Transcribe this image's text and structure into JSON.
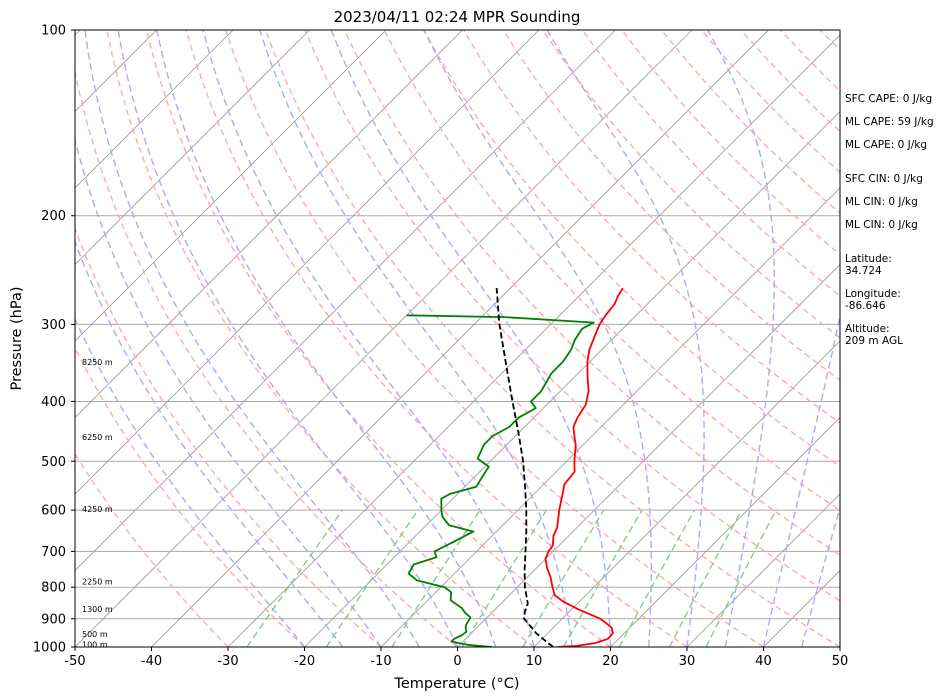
{
  "chart_data": {
    "type": "line",
    "title": "2023/04/11 02:24 MPR Sounding",
    "xlabel": "Temperature (°C)",
    "ylabel": "Pressure (hPa)",
    "xlim": [
      -50,
      50
    ],
    "ylim": [
      1000,
      100
    ],
    "y_scale": "log",
    "grid": true,
    "xticks": [
      "-50",
      "-40",
      "-30",
      "-20",
      "-10",
      "0",
      "10",
      "20",
      "30",
      "40",
      "50"
    ],
    "yticks": [
      "100",
      "200",
      "300",
      "400",
      "500",
      "600",
      "700",
      "800",
      "900",
      "1000"
    ],
    "height_labels": [
      {
        "text": "8250 m",
        "p": 345
      },
      {
        "text": "6250 m",
        "p": 457
      },
      {
        "text": "4250 m",
        "p": 598
      },
      {
        "text": "2250 m",
        "p": 783
      },
      {
        "text": "1300 m",
        "p": 868
      },
      {
        "text": "500 m",
        "p": 952
      },
      {
        "text": "100 m",
        "p": 990
      }
    ],
    "series": [
      {
        "color": "#ff0000",
        "values": [
          {
            "p": 1000,
            "t": 13.0
          },
          {
            "p": 996,
            "t": 15.5
          },
          {
            "p": 985,
            "t": 17.5
          },
          {
            "p": 970,
            "t": 18.6
          },
          {
            "p": 950,
            "t": 18.5
          },
          {
            "p": 930,
            "t": 17.6
          },
          {
            "p": 900,
            "t": 15.0
          },
          {
            "p": 870,
            "t": 11.0
          },
          {
            "p": 845,
            "t": 8.0
          },
          {
            "p": 825,
            "t": 6.0
          },
          {
            "p": 800,
            "t": 4.6
          },
          {
            "p": 770,
            "t": 3.0
          },
          {
            "p": 745,
            "t": 1.4
          },
          {
            "p": 720,
            "t": 0.0
          },
          {
            "p": 700,
            "t": -0.6
          },
          {
            "p": 685,
            "t": -0.8
          },
          {
            "p": 660,
            "t": -2.0
          },
          {
            "p": 640,
            "t": -2.6
          },
          {
            "p": 600,
            "t": -4.6
          },
          {
            "p": 560,
            "t": -6.5
          },
          {
            "p": 545,
            "t": -7.3
          },
          {
            "p": 520,
            "t": -7.6
          },
          {
            "p": 500,
            "t": -9.0
          },
          {
            "p": 470,
            "t": -11.0
          },
          {
            "p": 455,
            "t": -12.3
          },
          {
            "p": 440,
            "t": -13.6
          },
          {
            "p": 425,
            "t": -14.3
          },
          {
            "p": 405,
            "t": -14.9
          },
          {
            "p": 385,
            "t": -16.3
          },
          {
            "p": 365,
            "t": -18.3
          },
          {
            "p": 345,
            "t": -20.3
          },
          {
            "p": 330,
            "t": -21.6
          },
          {
            "p": 315,
            "t": -22.6
          },
          {
            "p": 300,
            "t": -23.6
          },
          {
            "p": 290,
            "t": -24.0
          },
          {
            "p": 278,
            "t": -24.3
          },
          {
            "p": 270,
            "t": -24.9
          },
          {
            "p": 262,
            "t": -25.3
          }
        ]
      },
      {
        "color": "#008000",
        "values": [
          {
            "p": 1000,
            "t": 4.5
          },
          {
            "p": 992,
            "t": 1.0
          },
          {
            "p": 980,
            "t": -1.5
          },
          {
            "p": 970,
            "t": -1.5
          },
          {
            "p": 958,
            "t": -1.0
          },
          {
            "p": 945,
            "t": -0.8
          },
          {
            "p": 930,
            "t": -1.5
          },
          {
            "p": 920,
            "t": -1.8
          },
          {
            "p": 905,
            "t": -2.0
          },
          {
            "p": 895,
            "t": -2.2
          },
          {
            "p": 880,
            "t": -3.5
          },
          {
            "p": 865,
            "t": -4.5
          },
          {
            "p": 840,
            "t": -7.0
          },
          {
            "p": 815,
            "t": -8.0
          },
          {
            "p": 800,
            "t": -9.5
          },
          {
            "p": 780,
            "t": -14.0
          },
          {
            "p": 760,
            "t": -16.0
          },
          {
            "p": 735,
            "t": -16.5
          },
          {
            "p": 715,
            "t": -14.5
          },
          {
            "p": 700,
            "t": -15.5
          },
          {
            "p": 680,
            "t": -14.5
          },
          {
            "p": 650,
            "t": -13.0
          },
          {
            "p": 635,
            "t": -17.0
          },
          {
            "p": 615,
            "t": -19.0
          },
          {
            "p": 600,
            "t": -20.0
          },
          {
            "p": 575,
            "t": -21.5
          },
          {
            "p": 565,
            "t": -21.0
          },
          {
            "p": 550,
            "t": -18.5
          },
          {
            "p": 530,
            "t": -19.0
          },
          {
            "p": 510,
            "t": -19.5
          },
          {
            "p": 495,
            "t": -22.0
          },
          {
            "p": 470,
            "t": -23.0
          },
          {
            "p": 455,
            "t": -23.0
          },
          {
            "p": 440,
            "t": -22.0
          },
          {
            "p": 425,
            "t": -22.0
          },
          {
            "p": 410,
            "t": -21.0
          },
          {
            "p": 400,
            "t": -22.5
          },
          {
            "p": 385,
            "t": -22.5
          },
          {
            "p": 372,
            "t": -23.0
          },
          {
            "p": 360,
            "t": -23.5
          },
          {
            "p": 345,
            "t": -23.5
          },
          {
            "p": 330,
            "t": -24.0
          },
          {
            "p": 318,
            "t": -24.8
          },
          {
            "p": 305,
            "t": -25.3
          },
          {
            "p": 298,
            "t": -24.6
          },
          {
            "p": 292,
            "t": -37.0
          },
          {
            "p": 290,
            "t": -50.0
          }
        ]
      },
      {
        "color": "#000000",
        "values": [
          {
            "p": 1000,
            "t": 12.5
          },
          {
            "p": 975,
            "t": 10.5
          },
          {
            "p": 950,
            "t": 8.5
          },
          {
            "p": 925,
            "t": 6.8
          },
          {
            "p": 900,
            "t": 5.0
          },
          {
            "p": 880,
            "t": 4.3
          },
          {
            "p": 850,
            "t": 3.5
          },
          {
            "p": 800,
            "t": 1.0
          },
          {
            "p": 750,
            "t": -1.3
          },
          {
            "p": 700,
            "t": -3.6
          },
          {
            "p": 650,
            "t": -6.1
          },
          {
            "p": 600,
            "t": -8.9
          },
          {
            "p": 550,
            "t": -12.1
          },
          {
            "p": 500,
            "t": -15.7
          },
          {
            "p": 450,
            "t": -20.0
          },
          {
            "p": 400,
            "t": -24.9
          },
          {
            "p": 350,
            "t": -30.4
          },
          {
            "p": 300,
            "t": -36.7
          },
          {
            "p": 262,
            "t": -41.8
          }
        ]
      }
    ]
  },
  "side_labels": [
    "SFC CAPE: 0 J/kg",
    "ML CAPE: 59 J/kg",
    "ML CAPE: 0 J/kg",
    "SFC CIN: 0 J/kg",
    "ML CIN: 0 J/kg",
    "ML CIN: 0 J/kg",
    "Latitude:",
    "34.724",
    "Longitude:",
    "-86.646",
    "Altitude:",
    "209 m AGL"
  ],
  "colors": {
    "temperature": "#ff0000",
    "dewpoint": "#008000",
    "parcel": "#000000",
    "dry_adiabats": "#ffaaaa",
    "moist_adiabats": "#aaaaff",
    "mixing_ratio": "#88cc88",
    "isotherms": "#999999",
    "isobars": "#aaaaaa"
  }
}
